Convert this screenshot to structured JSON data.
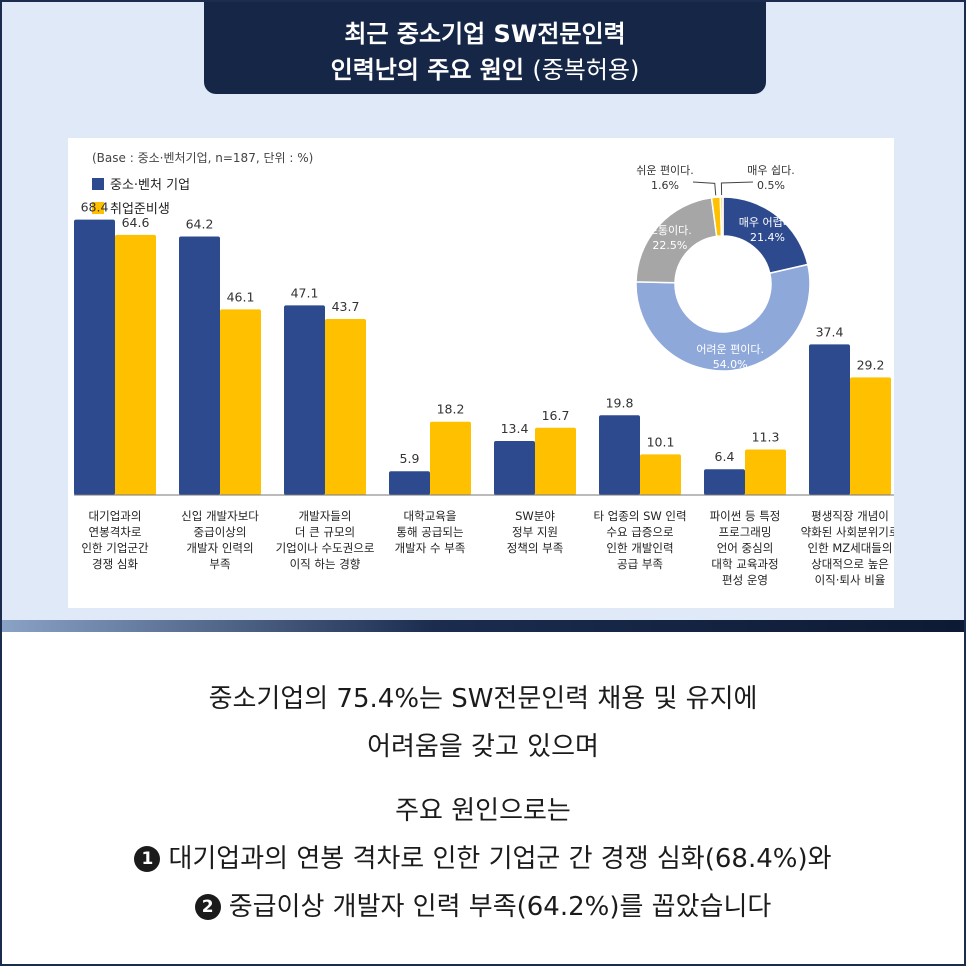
{
  "header": {
    "title_line1": "최근 중소기업 SW전문인력",
    "title_line2_main": "인력난의 주요 원인",
    "title_line2_note": "(중복허용)"
  },
  "chart_data": [
    {
      "type": "bar",
      "base_note": "(Base : 중소·벤처기업, n=187, 단위 : %)",
      "legend_position": "top-left",
      "categories": [
        [
          "대기업과의",
          "연봉격차로",
          "인한 기업군간",
          "경쟁 심화"
        ],
        [
          "신입 개발자보다",
          "중급이상의",
          "개발자 인력의",
          "부족"
        ],
        [
          "개발자들의",
          "더 큰 규모의",
          "기업이나 수도권으로",
          "이직 하는 경향"
        ],
        [
          "대학교육을",
          "통해 공급되는",
          "개발자 수 부족"
        ],
        [
          "SW분야",
          "정부 지원",
          "정책의 부족"
        ],
        [
          "타 업종의 SW 인력",
          "수요 급증으로",
          "인한 개발인력",
          "공급 부족"
        ],
        [
          "파이썬 등 특정",
          "프로그래밍",
          "언어 중심의",
          "대학 교육과정",
          "편성 운영"
        ],
        [
          "평생직장 개념이",
          "약화된 사회분위기로",
          "인한 MZ세대들의",
          "상대적으로 높은",
          "이직·퇴사 비율"
        ]
      ],
      "series": [
        {
          "name": "중소·벤처 기업",
          "color": "#2e4a8e",
          "values": [
            68.4,
            64.2,
            47.1,
            5.9,
            13.4,
            19.8,
            6.4,
            37.4
          ]
        },
        {
          "name": "취업준비생",
          "color": "#ffc000",
          "values": [
            64.6,
            46.1,
            43.7,
            18.2,
            16.7,
            10.1,
            11.3,
            29.2
          ]
        }
      ],
      "ylim": [
        0,
        75
      ],
      "grid": false
    },
    {
      "type": "pie",
      "donut": true,
      "slices": [
        {
          "label": "매우 어렵다.",
          "value": 21.4,
          "display": "21.4%",
          "color": "#2e4a8e"
        },
        {
          "label": "어려운 편이다.",
          "value": 54.0,
          "display": "54.0%",
          "color": "#8fa8da"
        },
        {
          "label": "보통이다.",
          "value": 22.5,
          "display": "22.5%",
          "color": "#a6a6a6"
        },
        {
          "label": "쉬운 편이다.",
          "value": 1.6,
          "display": "1.6%",
          "color": "#ffc000"
        },
        {
          "label": "매우 쉽다.",
          "value": 0.5,
          "display": "0.5%",
          "color": "#ffd966"
        }
      ]
    }
  ],
  "summary": {
    "line1": "중소기업의 75.4%는 SW전문인력 채용 및 유지에",
    "line2": "어려움을 갖고 있으며",
    "line3": "주요 원인으로는",
    "item1_num": "1",
    "item1_text": "대기업과의 연봉 격차로 인한 기업군 간 경쟁 심화(68.4%)와",
    "item2_num": "2",
    "item2_text": "중급이상 개발자 인력 부족(64.2%)를 꼽았습니다"
  }
}
